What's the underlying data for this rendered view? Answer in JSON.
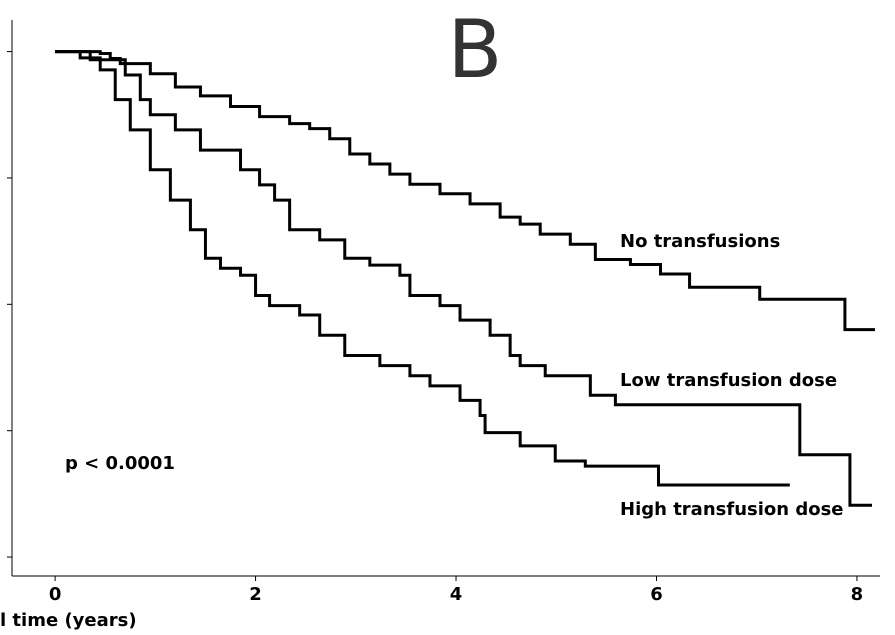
{
  "chart_data": {
    "type": "line",
    "step": true,
    "title": "B",
    "annotation": "p < 0.0001",
    "x_label": "l time (years)",
    "xlim": [
      -0.43,
      8.23
    ],
    "xticks": [
      0,
      2,
      4,
      6,
      8
    ],
    "ylim": [
      0.17,
      1.05
    ],
    "yticks": [
      0.2,
      0.4,
      0.6,
      0.8,
      1.0
    ],
    "series": [
      {
        "name": "No transfusions",
        "color": "#000000",
        "x": [
          0,
          0.45,
          0.55,
          0.65,
          0.95,
          1.2,
          1.45,
          1.75,
          2.04,
          2.34,
          2.54,
          2.74,
          2.94,
          3.14,
          3.34,
          3.54,
          3.84,
          4.14,
          4.44,
          4.64,
          4.84,
          5.14,
          5.39,
          5.74,
          6.04,
          6.33,
          7.03,
          7.88,
          8.18
        ],
        "values": [
          1.0,
          0.997,
          0.989,
          0.981,
          0.965,
          0.944,
          0.93,
          0.913,
          0.897,
          0.886,
          0.878,
          0.862,
          0.838,
          0.822,
          0.806,
          0.79,
          0.775,
          0.759,
          0.738,
          0.727,
          0.711,
          0.695,
          0.671,
          0.663,
          0.648,
          0.627,
          0.608,
          0.56,
          0.56
        ]
      },
      {
        "name": "Low transfusion dose",
        "color": "#000000",
        "x": [
          0,
          0.35,
          0.7,
          0.85,
          0.95,
          1.2,
          1.45,
          1.85,
          2.04,
          2.19,
          2.34,
          2.64,
          2.89,
          3.14,
          3.44,
          3.54,
          3.84,
          4.04,
          4.34,
          4.54,
          4.64,
          4.89,
          5.34,
          5.59,
          7.43,
          7.93,
          8.15
        ],
        "values": [
          1.0,
          0.987,
          0.963,
          0.924,
          0.9,
          0.876,
          0.844,
          0.813,
          0.789,
          0.765,
          0.718,
          0.702,
          0.673,
          0.662,
          0.646,
          0.614,
          0.598,
          0.575,
          0.551,
          0.519,
          0.503,
          0.487,
          0.456,
          0.441,
          0.362,
          0.282,
          0.282
        ]
      },
      {
        "name": "High transfusion dose",
        "color": "#000000",
        "x": [
          0,
          0.25,
          0.45,
          0.6,
          0.75,
          0.95,
          1.15,
          1.35,
          1.5,
          1.65,
          1.85,
          2.0,
          2.14,
          2.44,
          2.64,
          2.89,
          3.24,
          3.54,
          3.74,
          4.04,
          4.24,
          4.29,
          4.64,
          4.99,
          5.29,
          6.02,
          7.33
        ],
        "values": [
          1.0,
          0.99,
          0.971,
          0.924,
          0.876,
          0.813,
          0.765,
          0.718,
          0.673,
          0.657,
          0.646,
          0.614,
          0.598,
          0.583,
          0.551,
          0.519,
          0.503,
          0.487,
          0.471,
          0.448,
          0.424,
          0.397,
          0.376,
          0.352,
          0.344,
          0.314,
          0.314
        ]
      }
    ]
  }
}
